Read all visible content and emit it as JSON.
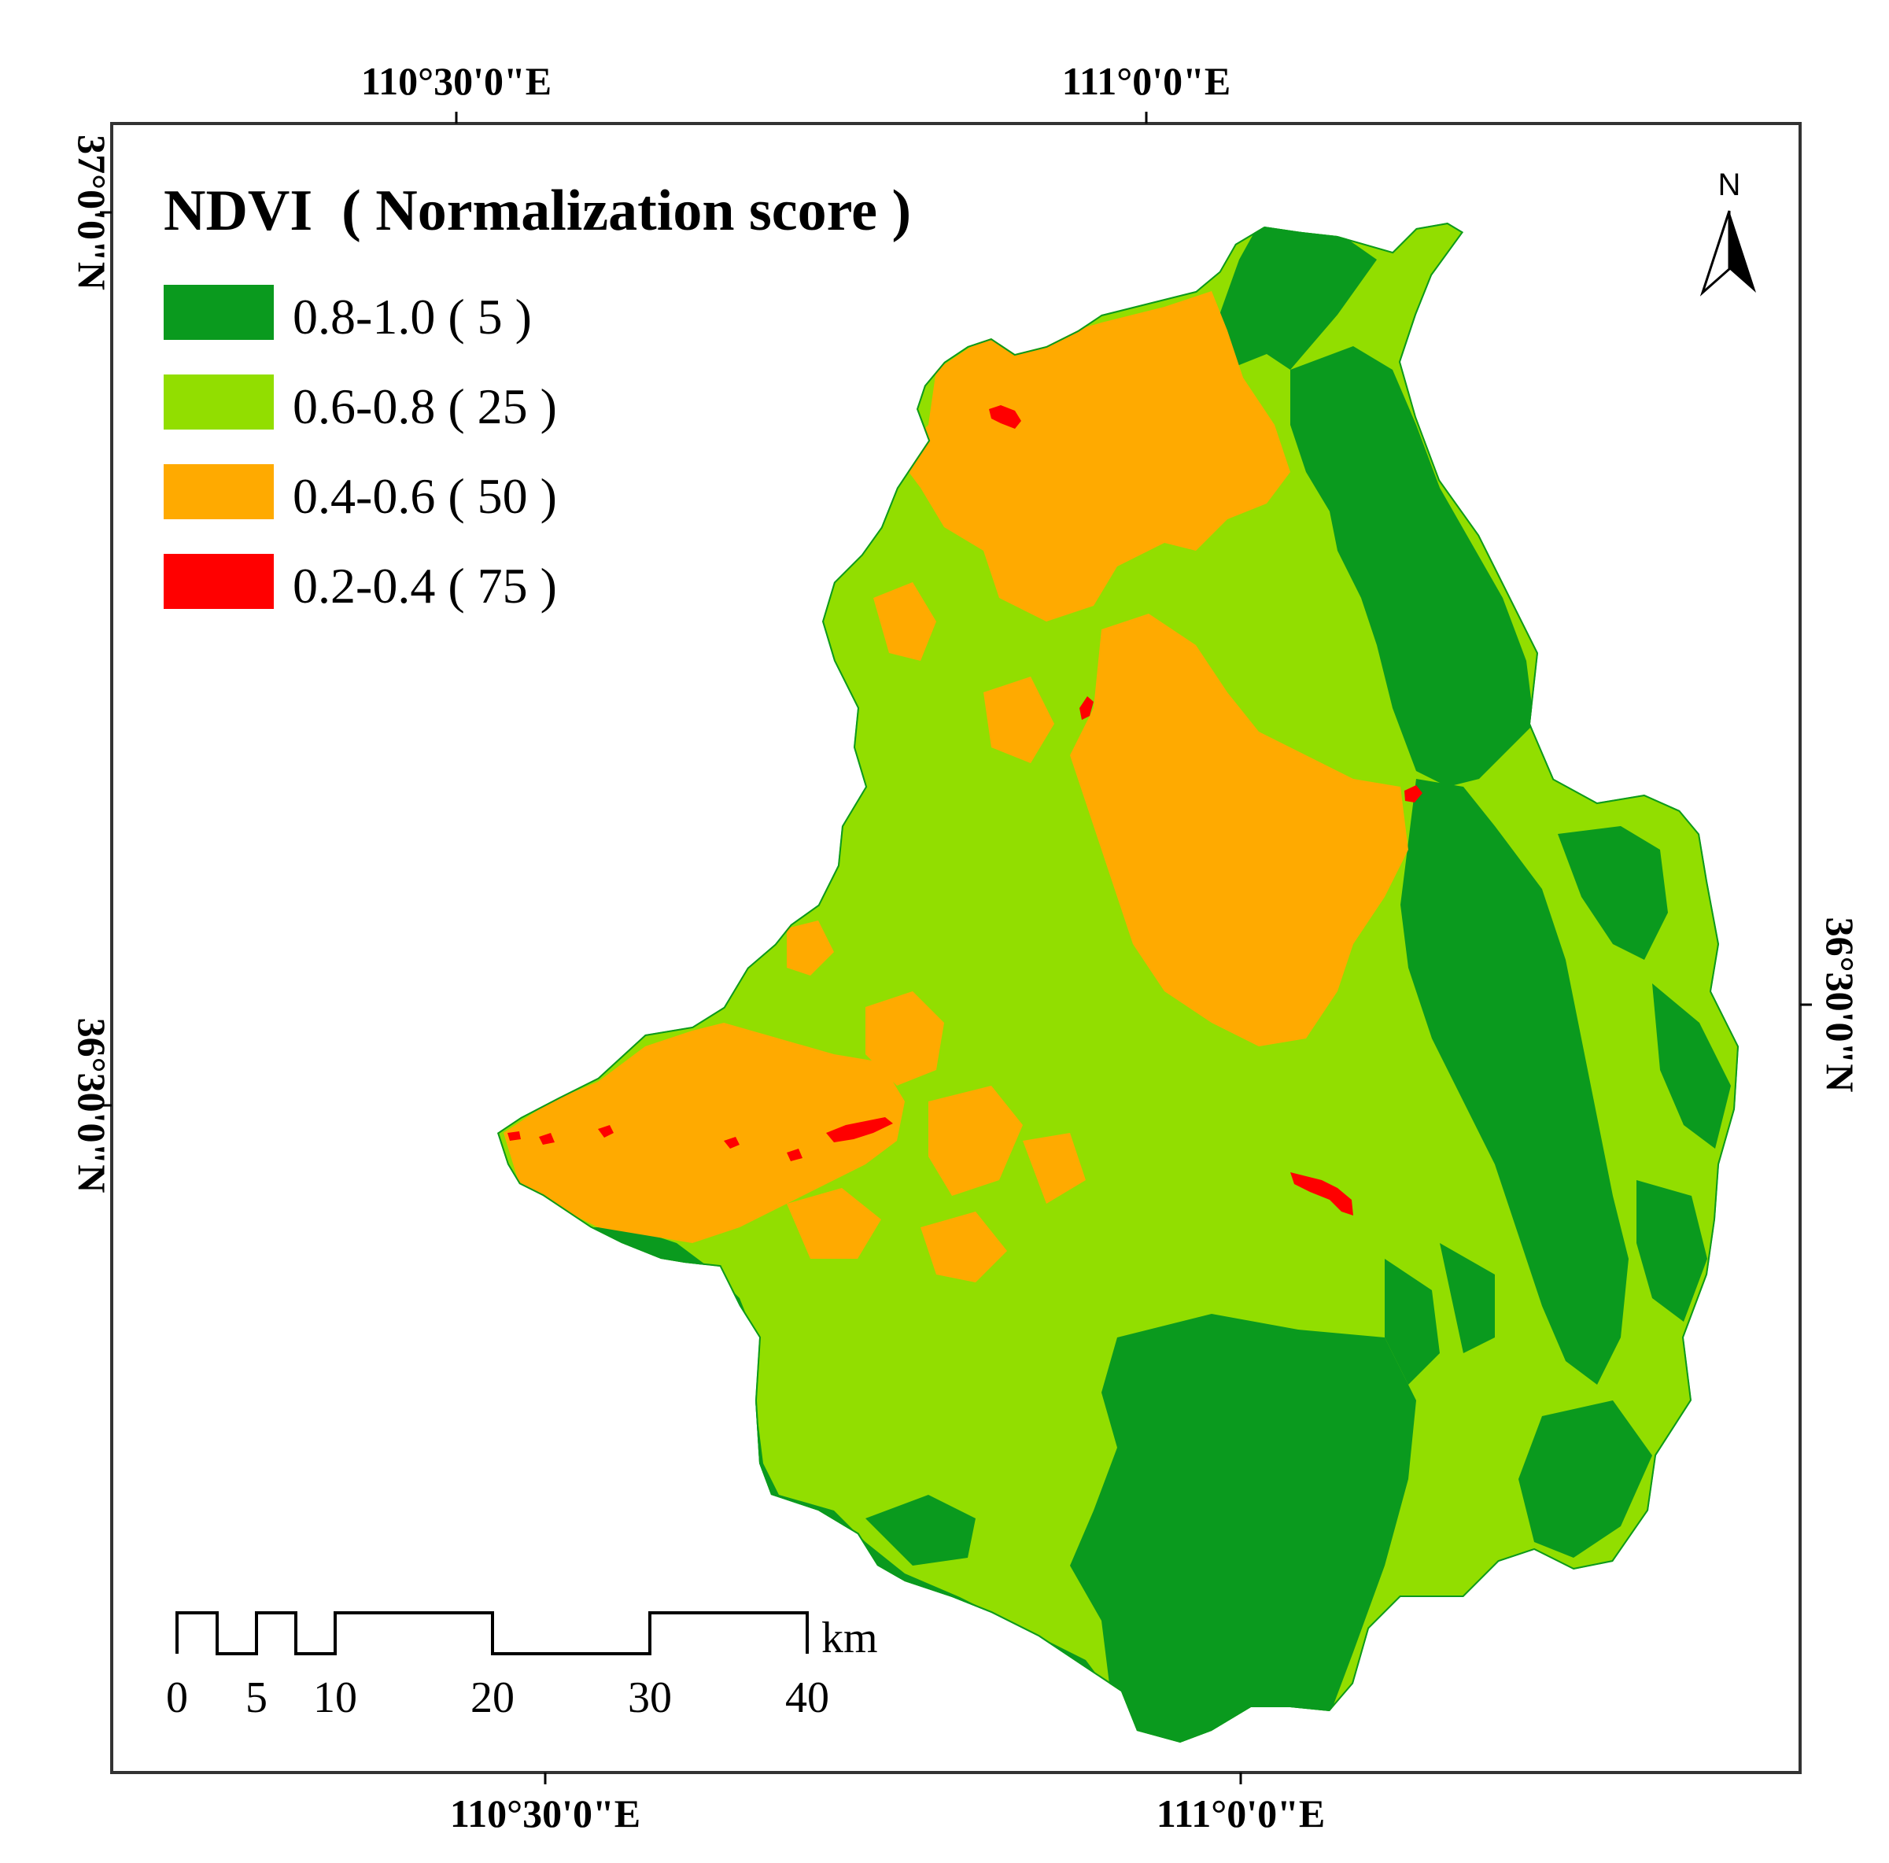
{
  "legend": {
    "title": "NDVI  ( Normalization score )",
    "classes": [
      {
        "range": "0.8-1.0",
        "score": "5",
        "label": "0.8-1.0 ( 5 )",
        "color": "#0a9a1e"
      },
      {
        "range": "0.6-0.8",
        "score": "25",
        "label": "0.6-0.8 ( 25 )",
        "color": "#92de00"
      },
      {
        "range": "0.4-0.6",
        "score": "50",
        "label": "0.4-0.6 ( 50 )",
        "color": "#ffaa00"
      },
      {
        "range": "0.2-0.4",
        "score": "75",
        "label": "0.2-0.4 ( 75 )",
        "color": "#ff0000"
      }
    ]
  },
  "graticule": {
    "top": [
      "110°30'0\"E",
      "111°0'0\"E"
    ],
    "bottom": [
      "110°30'0\"E",
      "111°0'0\"E"
    ],
    "left": [
      "37°0'0\"N",
      "36°30'0\"N"
    ],
    "right": [
      "36°30'0\"N"
    ]
  },
  "north_arrow": {
    "label": "N"
  },
  "scale_bar": {
    "unit": "km",
    "ticks": [
      "0",
      "5",
      "10",
      "20",
      "30",
      "40"
    ]
  }
}
